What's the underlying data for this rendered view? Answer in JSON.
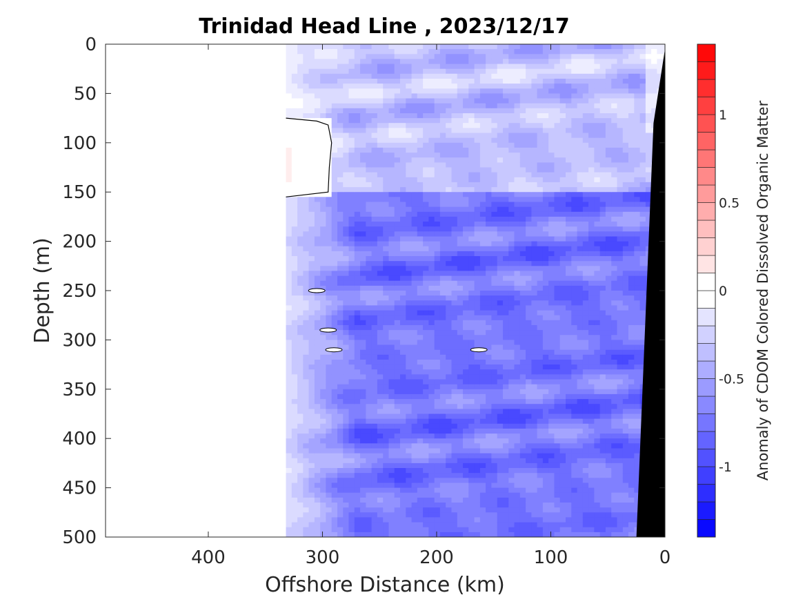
{
  "chart_data": {
    "type": "heatmap",
    "subtype": "filled-contour",
    "title": "Trinidad Head Line , 2023/12/17",
    "xlabel": "Offshore Distance (km)",
    "ylabel": "Depth (m)",
    "colorbar_label": "Anomaly of CDOM Colored Dissolved Organic Matter",
    "xlim": [
      490,
      0
    ],
    "x_reversed": true,
    "ylim": [
      0,
      500
    ],
    "y_reversed": true,
    "x_ticks": [
      "400",
      "300",
      "200",
      "100",
      "0"
    ],
    "x_tick_values": [
      400,
      300,
      200,
      100,
      0
    ],
    "y_ticks": [
      "0",
      "50",
      "100",
      "150",
      "200",
      "250",
      "300",
      "350",
      "400",
      "450",
      "500"
    ],
    "y_tick_values": [
      0,
      50,
      100,
      150,
      200,
      250,
      300,
      350,
      400,
      450,
      500
    ],
    "colorbar": {
      "range": [
        -1.4,
        1.4
      ],
      "step": 0.1,
      "tick_labels": [
        "1",
        "0.5",
        "0",
        "-0.5",
        "-1"
      ],
      "tick_values": [
        1,
        0.5,
        0,
        -0.5,
        -1
      ],
      "colormap": "blue-white-red",
      "low_color": "#0000ff",
      "mid_color": "#ffffff",
      "high_color": "#ff0000"
    },
    "data_extent_km": [
      332,
      0
    ],
    "anomaly_layers": [
      {
        "depth_range": [
          0,
          150
        ],
        "typical_anomaly": -0.35
      },
      {
        "depth_range": [
          150,
          500
        ],
        "typical_anomaly": -0.75
      }
    ],
    "near_zero_region": {
      "x_range": [
        332,
        290
      ],
      "depth_range": [
        75,
        155
      ]
    },
    "zero_contours_at": [
      {
        "x": 305,
        "depth": 250
      },
      {
        "x": 295,
        "depth": 290
      },
      {
        "x": 290,
        "depth": 310
      },
      {
        "x": 163,
        "depth": 310
      }
    ],
    "bathymetry": {
      "color": "#000000",
      "points": [
        {
          "x": 0,
          "depth": 5
        },
        {
          "x": 10,
          "depth": 80
        },
        {
          "x": 25,
          "depth": 500
        }
      ]
    },
    "grid": false
  }
}
